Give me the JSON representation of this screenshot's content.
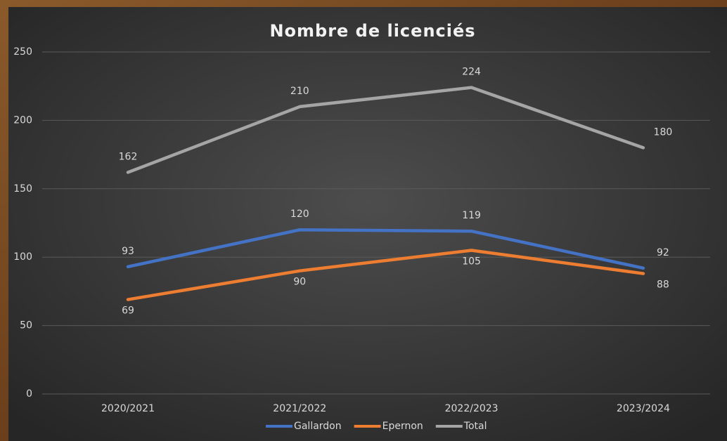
{
  "chart_data": {
    "type": "line",
    "title": "Nombre de licenciés",
    "categories": [
      "2020/2021",
      "2021/2022",
      "2022/2023",
      "2023/2024"
    ],
    "series": [
      {
        "name": "Gallardon",
        "color": "#4472c4",
        "values": [
          93,
          120,
          119,
          92
        ]
      },
      {
        "name": "Epernon",
        "color": "#ed7d31",
        "values": [
          69,
          90,
          105,
          88
        ]
      },
      {
        "name": "Total",
        "color": "#a5a5a5",
        "values": [
          162,
          210,
          224,
          180
        ]
      }
    ],
    "ylim": [
      0,
      250
    ],
    "yticks": [
      0,
      50,
      100,
      150,
      200,
      250
    ],
    "grid": true,
    "legend": "bottom"
  }
}
